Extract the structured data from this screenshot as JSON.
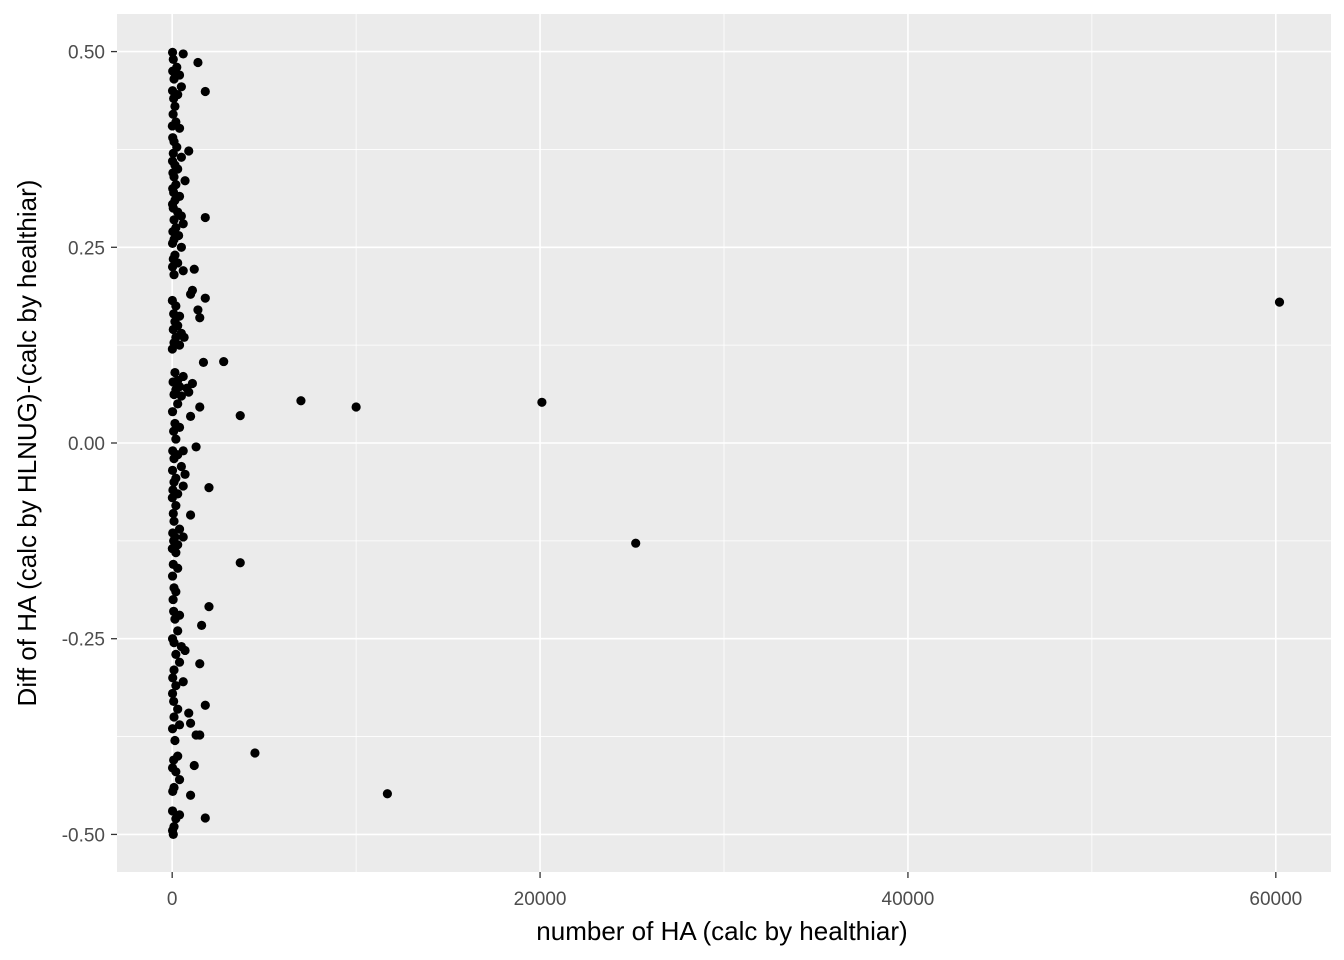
{
  "chart_data": {
    "type": "scatter",
    "title": "",
    "xlabel": "number of HA (calc by healthiar)",
    "ylabel": "Diff of HA (calc by HLNUG)-(calc by healthiar)",
    "xlim": [
      -3000,
      63000
    ],
    "ylim": [
      -0.548,
      0.548
    ],
    "x_ticks": [
      0,
      20000,
      40000,
      60000
    ],
    "x_tick_labels": [
      "0",
      "20000",
      "40000",
      "60000"
    ],
    "x_minor_ticks": [
      10000,
      30000,
      50000
    ],
    "y_ticks": [
      -0.5,
      -0.25,
      0,
      0.25,
      0.5
    ],
    "y_tick_labels": [
      "-0.50",
      "-0.25",
      "0.00",
      "0.25",
      "0.50"
    ],
    "y_minor_ticks": [
      -0.375,
      -0.125,
      0.125,
      0.375
    ],
    "grid": true,
    "point_color": "#000000",
    "panel_color": "#ebebeb",
    "grid_color": "#ffffff",
    "points": [
      [
        20,
        0.499
      ],
      [
        60,
        0.49
      ],
      [
        250,
        0.48
      ],
      [
        30,
        0.475
      ],
      [
        400,
        0.47
      ],
      [
        1400,
        0.486
      ],
      [
        600,
        0.497
      ],
      [
        100,
        0.465
      ],
      [
        500,
        0.455
      ],
      [
        20,
        0.45
      ],
      [
        300,
        0.445
      ],
      [
        1800,
        0.449
      ],
      [
        80,
        0.44
      ],
      [
        150,
        0.43
      ],
      [
        50,
        0.42
      ],
      [
        200,
        0.41
      ],
      [
        10,
        0.405
      ],
      [
        400,
        0.402
      ],
      [
        30,
        0.39
      ],
      [
        100,
        0.385
      ],
      [
        250,
        0.378
      ],
      [
        60,
        0.37
      ],
      [
        900,
        0.373
      ],
      [
        500,
        0.365
      ],
      [
        20,
        0.36
      ],
      [
        150,
        0.355
      ],
      [
        300,
        0.35
      ],
      [
        40,
        0.345
      ],
      [
        100,
        0.34
      ],
      [
        700,
        0.335
      ],
      [
        200,
        0.33
      ],
      [
        30,
        0.325
      ],
      [
        80,
        0.32
      ],
      [
        400,
        0.315
      ],
      [
        150,
        0.31
      ],
      [
        20,
        0.305
      ],
      [
        60,
        0.3
      ],
      [
        300,
        0.295
      ],
      [
        500,
        0.29
      ],
      [
        1800,
        0.288
      ],
      [
        100,
        0.285
      ],
      [
        600,
        0.28
      ],
      [
        200,
        0.275
      ],
      [
        40,
        0.27
      ],
      [
        350,
        0.265
      ],
      [
        100,
        0.26
      ],
      [
        20,
        0.255
      ],
      [
        500,
        0.25
      ],
      [
        150,
        0.24
      ],
      [
        60,
        0.235
      ],
      [
        300,
        0.23
      ],
      [
        20,
        0.225
      ],
      [
        1200,
        0.222
      ],
      [
        600,
        0.22
      ],
      [
        100,
        0.215
      ],
      [
        1100,
        0.195
      ],
      [
        1000,
        0.19
      ],
      [
        1800,
        0.185
      ],
      [
        10,
        0.182
      ],
      [
        200,
        0.175
      ],
      [
        1400,
        0.17
      ],
      [
        80,
        0.165
      ],
      [
        400,
        0.162
      ],
      [
        1500,
        0.16
      ],
      [
        150,
        0.155
      ],
      [
        300,
        0.15
      ],
      [
        60,
        0.145
      ],
      [
        500,
        0.14
      ],
      [
        200,
        0.135
      ],
      [
        650,
        0.135
      ],
      [
        100,
        0.128
      ],
      [
        400,
        0.125
      ],
      [
        10,
        0.12
      ],
      [
        1700,
        0.103
      ],
      [
        2800,
        0.104
      ],
      [
        150,
        0.09
      ],
      [
        600,
        0.085
      ],
      [
        300,
        0.08
      ],
      [
        50,
        0.078
      ],
      [
        1100,
        0.076
      ],
      [
        400,
        0.072
      ],
      [
        800,
        0.07
      ],
      [
        200,
        0.068
      ],
      [
        900,
        0.065
      ],
      [
        100,
        0.062
      ],
      [
        500,
        0.06
      ],
      [
        7000,
        0.054
      ],
      [
        20100,
        0.052
      ],
      [
        300,
        0.05
      ],
      [
        10000,
        0.046
      ],
      [
        1500,
        0.046
      ],
      [
        20,
        0.04
      ],
      [
        3700,
        0.035
      ],
      [
        1000,
        0.034
      ],
      [
        150,
        0.025
      ],
      [
        400,
        0.02
      ],
      [
        80,
        0.015
      ],
      [
        200,
        0.005
      ],
      [
        1300,
        -0.005
      ],
      [
        600,
        -0.01
      ],
      [
        30,
        -0.01
      ],
      [
        300,
        -0.015
      ],
      [
        100,
        -0.02
      ],
      [
        500,
        -0.03
      ],
      [
        20,
        -0.035
      ],
      [
        700,
        -0.04
      ],
      [
        200,
        -0.045
      ],
      [
        100,
        -0.05
      ],
      [
        600,
        -0.055
      ],
      [
        2000,
        -0.057
      ],
      [
        40,
        -0.06
      ],
      [
        300,
        -0.065
      ],
      [
        10,
        -0.07
      ],
      [
        200,
        -0.08
      ],
      [
        60,
        -0.09
      ],
      [
        1000,
        -0.092
      ],
      [
        100,
        -0.1
      ],
      [
        400,
        -0.11
      ],
      [
        30,
        -0.115
      ],
      [
        150,
        -0.12
      ],
      [
        600,
        -0.12
      ],
      [
        80,
        -0.125
      ],
      [
        25200,
        -0.128
      ],
      [
        300,
        -0.13
      ],
      [
        10,
        -0.135
      ],
      [
        200,
        -0.14
      ],
      [
        3700,
        -0.153
      ],
      [
        60,
        -0.155
      ],
      [
        300,
        -0.16
      ],
      [
        20,
        -0.17
      ],
      [
        100,
        -0.185
      ],
      [
        200,
        -0.19
      ],
      [
        50,
        -0.2
      ],
      [
        2000,
        -0.209
      ],
      [
        80,
        -0.215
      ],
      [
        400,
        -0.22
      ],
      [
        150,
        -0.225
      ],
      [
        1600,
        -0.233
      ],
      [
        300,
        -0.24
      ],
      [
        20,
        -0.25
      ],
      [
        100,
        -0.255
      ],
      [
        500,
        -0.26
      ],
      [
        700,
        -0.265
      ],
      [
        200,
        -0.27
      ],
      [
        400,
        -0.28
      ],
      [
        1500,
        -0.282
      ],
      [
        100,
        -0.29
      ],
      [
        30,
        -0.3
      ],
      [
        600,
        -0.305
      ],
      [
        200,
        -0.31
      ],
      [
        20,
        -0.32
      ],
      [
        80,
        -0.33
      ],
      [
        1800,
        -0.335
      ],
      [
        300,
        -0.34
      ],
      [
        900,
        -0.345
      ],
      [
        100,
        -0.35
      ],
      [
        1000,
        -0.358
      ],
      [
        400,
        -0.36
      ],
      [
        20,
        -0.365
      ],
      [
        1300,
        -0.373
      ],
      [
        1500,
        -0.373
      ],
      [
        150,
        -0.38
      ],
      [
        4500,
        -0.396
      ],
      [
        300,
        -0.4
      ],
      [
        80,
        -0.405
      ],
      [
        1200,
        -0.412
      ],
      [
        20,
        -0.415
      ],
      [
        200,
        -0.42
      ],
      [
        400,
        -0.43
      ],
      [
        100,
        -0.44
      ],
      [
        30,
        -0.445
      ],
      [
        11700,
        -0.448
      ],
      [
        1000,
        -0.45
      ],
      [
        20,
        -0.47
      ],
      [
        400,
        -0.475
      ],
      [
        200,
        -0.48
      ],
      [
        1800,
        -0.479
      ],
      [
        100,
        -0.49
      ],
      [
        60,
        -0.5
      ],
      [
        20,
        -0.495
      ],
      [
        60200,
        0.18
      ]
    ]
  }
}
